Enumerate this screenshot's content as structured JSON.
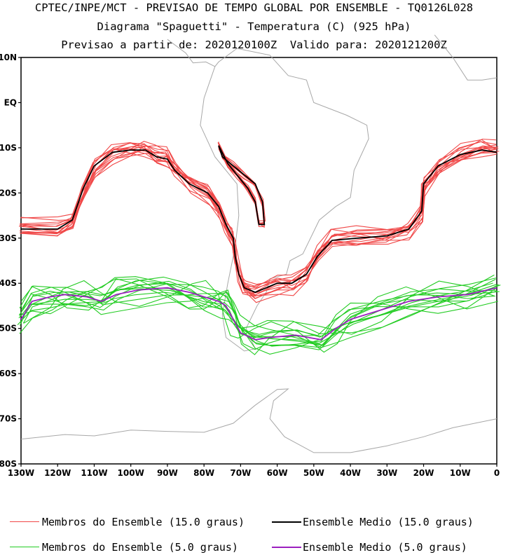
{
  "header": {
    "line1": "CPTEC/INPE/MCT - PREVISAO DE TEMPO GLOBAL POR ENSEMBLE - TQ0126L028",
    "line2": "Diagrama \"Spaguetti\" - Temperatura (C) (925 hPa)",
    "line3": "Previsao a partir de: 2020120100Z  Valido para: 2020121200Z"
  },
  "axes": {
    "lat_ticks": [
      "10N",
      "EQ",
      "10S",
      "20S",
      "30S",
      "40S",
      "50S",
      "60S",
      "70S",
      "80S"
    ],
    "lon_ticks": [
      "130W",
      "120W",
      "110W",
      "100W",
      "90W",
      "80W",
      "70W",
      "60W",
      "50W",
      "40W",
      "30W",
      "20W",
      "10W",
      "0"
    ],
    "lat_range": [
      -80,
      10
    ],
    "lon_range": [
      -130,
      0
    ]
  },
  "colors": {
    "members_15": "#f04848",
    "mean_15": "#000000",
    "members_5": "#22cc22",
    "mean_5": "#9b1fbf",
    "coast": "#a8a8a8"
  },
  "legend": {
    "members_15_label": "Membros do Ensemble (15.0 graus)",
    "mean_15_label": "Ensemble Medio (15.0 graus)",
    "members_5_label": "Membros do Ensemble (5.0 graus)",
    "mean_5_label": "Ensemble Medio (5.0 graus)"
  },
  "contours": {
    "mean_15": [
      [
        -130,
        -28
      ],
      [
        -120,
        -28
      ],
      [
        -116,
        -26
      ],
      [
        -113,
        -19
      ],
      [
        -110,
        -14
      ],
      [
        -105,
        -11
      ],
      [
        -100,
        -10.5
      ],
      [
        -96,
        -10.5
      ],
      [
        -93,
        -12
      ],
      [
        -90,
        -12.5
      ],
      [
        -88,
        -15
      ],
      [
        -84,
        -18
      ],
      [
        -79,
        -20
      ],
      [
        -76,
        -23
      ],
      [
        -74,
        -27
      ],
      [
        -72,
        -30
      ],
      [
        -71.5,
        -34
      ],
      [
        -70.5,
        -38
      ],
      [
        -69,
        -41
      ],
      [
        -66,
        -42
      ],
      [
        -60,
        -40
      ],
      [
        -56,
        -40
      ],
      [
        -52,
        -38
      ],
      [
        -49,
        -34
      ],
      [
        -45,
        -30.5
      ],
      [
        -38,
        -30
      ],
      [
        -30,
        -29.5
      ],
      [
        -24,
        -28
      ],
      [
        -20.5,
        -24
      ],
      [
        -20,
        -18
      ],
      [
        -16,
        -14
      ],
      [
        -10,
        -11.5
      ],
      [
        -4,
        -10.5
      ],
      [
        0,
        -11
      ]
    ],
    "mean_15_inner": [
      [
        -76,
        -9.5
      ],
      [
        -75,
        -12
      ],
      [
        -72,
        -14
      ],
      [
        -69,
        -16
      ],
      [
        -66,
        -18
      ],
      [
        -64,
        -22
      ],
      [
        -63.5,
        -27
      ],
      [
        -65,
        -27
      ],
      [
        -66,
        -22
      ],
      [
        -68,
        -19
      ],
      [
        -71,
        -16
      ],
      [
        -73.5,
        -13.5
      ],
      [
        -76,
        -9.5
      ]
    ],
    "mean_5": [
      [
        -130,
        -48
      ],
      [
        -127,
        -44
      ],
      [
        -122,
        -43
      ],
      [
        -118,
        -42.5
      ],
      [
        -112,
        -43
      ],
      [
        -108,
        -44
      ],
      [
        -104,
        -42.5
      ],
      [
        -98,
        -41.5
      ],
      [
        -90,
        -41
      ],
      [
        -84,
        -42
      ],
      [
        -80,
        -43
      ],
      [
        -76,
        -44
      ],
      [
        -74,
        -45
      ],
      [
        -72,
        -48
      ],
      [
        -70,
        -51
      ],
      [
        -66,
        -52.5
      ],
      [
        -62,
        -52
      ],
      [
        -55,
        -51.5
      ],
      [
        -48,
        -52.5
      ],
      [
        -44,
        -50
      ],
      [
        -40,
        -48
      ],
      [
        -32,
        -46
      ],
      [
        -24,
        -44
      ],
      [
        -16,
        -43
      ],
      [
        -8,
        -42.5
      ],
      [
        0,
        -41
      ]
    ],
    "members_15_spread": 2.2,
    "members_5_spread": 3.2,
    "members_count": 14
  }
}
